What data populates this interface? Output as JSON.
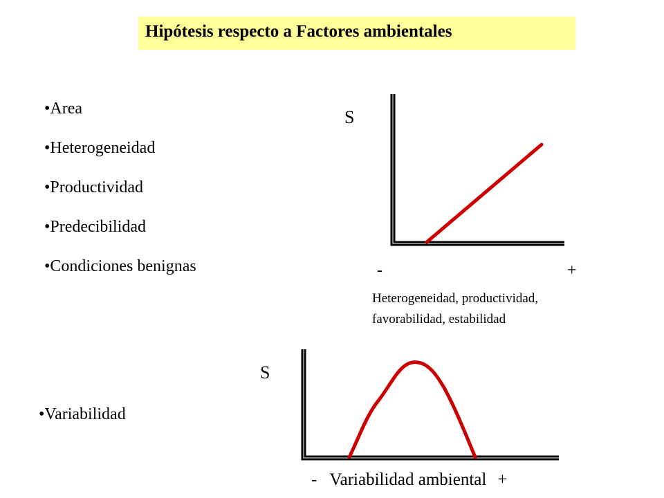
{
  "title": "Hipótesis respecto a Factores ambientales",
  "bullets": [
    "Area",
    "Heterogeneidad",
    "Productividad",
    "Predecibilidad",
    "Condiciones benignas"
  ],
  "bullet_variabilidad": "Variabilidad",
  "colors": {
    "title_bg": "#ffff99",
    "curve": "#cc0000",
    "axis": "#000000"
  },
  "chart_data": [
    {
      "type": "line",
      "ylabel": "S",
      "x_min_label": "-",
      "x_max_label": "+",
      "xlabel_line1": "Heterogeneidad, productividad,",
      "xlabel_line2": "favorabilidad, estabilidad",
      "trend": "increasing linear"
    },
    {
      "type": "line",
      "ylabel": "S",
      "x_min_label": "-",
      "xlabel": "Variabilidad ambiental",
      "x_max_label": "+",
      "trend": "unimodal hump"
    }
  ]
}
